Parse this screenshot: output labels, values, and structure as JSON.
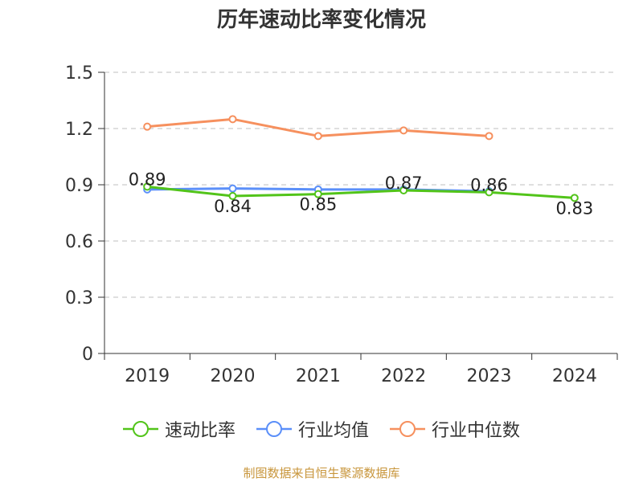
{
  "title": "历年速动比率变化情况",
  "source": "制图数据来自恒生聚源数据库",
  "colors": {
    "速动比率": "#52c41a",
    "行业均值": "#5b8ff9",
    "行业中位数": "#f6905e",
    "grid": "#cccccc",
    "axis": "#333333"
  },
  "chart_data": {
    "type": "line",
    "title": "历年速动比率变化情况",
    "categories": [
      "2019",
      "2020",
      "2021",
      "2022",
      "2023",
      "2024"
    ],
    "ylim": [
      0,
      1.5
    ],
    "yticks": [
      "0",
      "0.3",
      "0.6",
      "0.9",
      "1.2",
      "1.5"
    ],
    "grid": true,
    "legend_position": "bottom",
    "series": [
      {
        "name": "速动比率",
        "values": [
          0.89,
          0.84,
          0.85,
          0.87,
          0.86,
          0.83
        ],
        "labels": [
          "0.89",
          "0.84",
          "0.85",
          "0.87",
          "0.86",
          "0.83"
        ]
      },
      {
        "name": "行业均值",
        "values": [
          0.875,
          0.88,
          0.875,
          0.875,
          0.865,
          null
        ]
      },
      {
        "name": "行业中位数",
        "values": [
          1.21,
          1.25,
          1.16,
          1.19,
          1.16,
          null
        ]
      }
    ]
  }
}
